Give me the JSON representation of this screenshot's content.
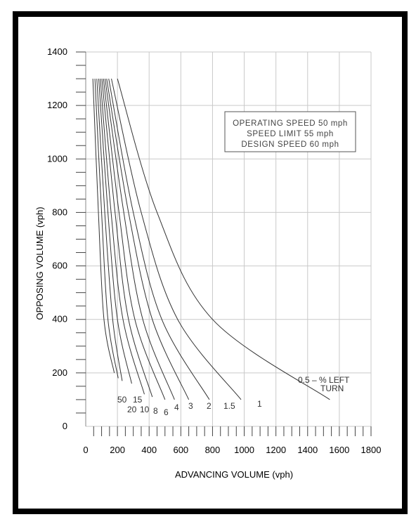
{
  "chart_data": {
    "type": "line",
    "xlabel": "ADVANCING VOLUME (vph)",
    "ylabel": "OPPOSING VOLUME (vph)",
    "xlim": [
      0,
      1800
    ],
    "ylim": [
      0,
      1400
    ],
    "x_ticks": [
      "0",
      "200",
      "400",
      "600",
      "800",
      "1000",
      "1200",
      "1400",
      "1600",
      "1800"
    ],
    "y_ticks": [
      "0",
      "200",
      "400",
      "600",
      "800",
      "1000",
      "1200",
      "1400"
    ],
    "grid": true,
    "annotation_lines": [
      "OPERATING SPEED 50 mph",
      "SPEED LIMIT 55 mph",
      "DESIGN SPEED 60 mph"
    ],
    "left_turn_label": [
      "0.5 – % LEFT",
      "TURN"
    ],
    "series": [
      {
        "name": "50",
        "x": [
          45,
          80,
          115,
          180
        ],
        "y": [
          1300,
          800,
          400,
          200
        ]
      },
      {
        "name": "15",
        "x": [
          70,
          120,
          170,
          230
        ],
        "y": [
          1300,
          800,
          400,
          170
        ]
      },
      {
        "name": "20",
        "x": [
          58,
          100,
          140,
          205
        ],
        "y": [
          1300,
          800,
          400,
          180
        ]
      },
      {
        "name": "10",
        "x": [
          82,
          140,
          200,
          290
        ],
        "y": [
          1300,
          800,
          400,
          160
        ]
      },
      {
        "name": "8",
        "x": [
          92,
          160,
          235,
          370
        ],
        "y": [
          1300,
          800,
          400,
          120
        ]
      },
      {
        "name": "6",
        "x": [
          102,
          185,
          270,
          420
        ],
        "y": [
          1300,
          800,
          400,
          110
        ]
      },
      {
        "name": "4",
        "x": [
          112,
          210,
          310,
          500
        ],
        "y": [
          1300,
          800,
          400,
          100
        ]
      },
      {
        "name": "3",
        "x": [
          122,
          240,
          360,
          560
        ],
        "y": [
          1300,
          800,
          400,
          100
        ]
      },
      {
        "name": "2",
        "x": [
          132,
          270,
          420,
          650
        ],
        "y": [
          1300,
          800,
          400,
          100
        ]
      },
      {
        "name": "1.5",
        "x": [
          145,
          300,
          480,
          780
        ],
        "y": [
          1300,
          800,
          400,
          100
        ]
      },
      {
        "name": "1",
        "x": [
          162,
          350,
          580,
          980
        ],
        "y": [
          1300,
          800,
          400,
          100
        ]
      },
      {
        "name": "0.5",
        "x": [
          200,
          450,
          800,
          1540
        ],
        "y": [
          1300,
          800,
          400,
          100
        ]
      }
    ]
  }
}
